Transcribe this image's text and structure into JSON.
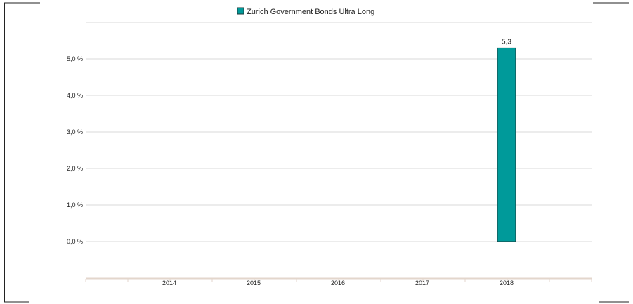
{
  "chart_data": {
    "type": "bar",
    "categories": [
      "2014",
      "2015",
      "2016",
      "2017",
      "2018"
    ],
    "series": [
      {
        "name": "Zurich Government Bonds Ultra Long",
        "values": [
          null,
          null,
          null,
          null,
          5.3
        ],
        "data_labels": [
          "",
          "",
          "",
          "",
          "5,3"
        ]
      }
    ],
    "y_ticks": [
      0,
      1,
      2,
      3,
      4,
      5
    ],
    "y_tick_labels": [
      "0,0 %",
      "1,0 %",
      "2,0 %",
      "3,0 %",
      "4,0 %",
      "5,0 %"
    ],
    "ylim": [
      -1,
      6
    ],
    "grid": true,
    "legend_position": "top-center",
    "colors": {
      "bar_fill": "#009a9a",
      "bar_stroke": "#1c3a3a",
      "grid": "#d8d8d8",
      "x_axis": "#e3d6cc",
      "frame": "#222222"
    }
  }
}
